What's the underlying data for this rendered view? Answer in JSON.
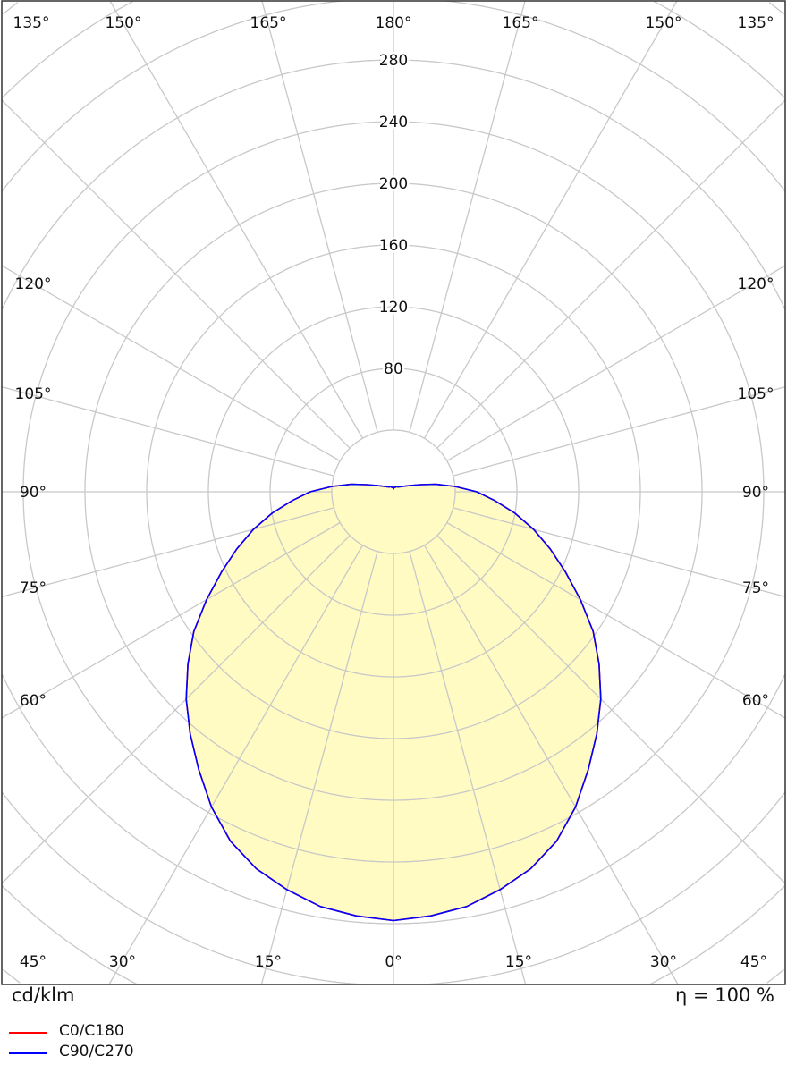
{
  "chart_data": {
    "type": "polar",
    "unit_label": "cd/klm",
    "efficiency_label": "η = 100 %",
    "radial_ticks": [
      80,
      120,
      160,
      200,
      240,
      280
    ],
    "ring_step": 40,
    "angle_labels": {
      "top": [
        "135°",
        "150°",
        "165°",
        "180°",
        "165°",
        "150°",
        "135°"
      ],
      "left": [
        "120°",
        "105°",
        "90°",
        "75°",
        "60°"
      ],
      "right": [
        "120°",
        "105°",
        "90°",
        "75°",
        "60°"
      ],
      "bottom": [
        "45°",
        "30°",
        "15°",
        "0°",
        "15°",
        "30°",
        "45°"
      ]
    },
    "grid": true,
    "fill_color": "#fffbc2",
    "series": [
      {
        "name": "C0/C180",
        "color": "#ff0000",
        "angles": [
          0,
          5,
          10,
          15,
          20,
          25,
          30,
          35,
          40,
          45,
          50,
          55,
          60,
          65,
          70,
          75,
          80,
          85,
          90,
          95,
          100,
          105,
          110,
          115,
          120,
          130,
          140,
          150,
          160,
          170,
          180
        ],
        "values": [
          278,
          276,
          273,
          267,
          260,
          250,
          236,
          220,
          205,
          190,
          174,
          158,
          140,
          123,
          108,
          94,
          80,
          66,
          54,
          40,
          28,
          18,
          12,
          9,
          7,
          5,
          4,
          4,
          3,
          3,
          2
        ]
      },
      {
        "name": "C90/C270",
        "color": "#0000ff",
        "angles": [
          0,
          5,
          10,
          15,
          20,
          25,
          30,
          35,
          40,
          45,
          50,
          55,
          60,
          65,
          70,
          75,
          80,
          85,
          90,
          95,
          100,
          105,
          110,
          115,
          120,
          130,
          140,
          150,
          160,
          170,
          180
        ],
        "values": [
          278,
          276,
          273,
          267,
          260,
          250,
          236,
          220,
          205,
          190,
          174,
          158,
          140,
          123,
          108,
          94,
          80,
          66,
          54,
          40,
          28,
          18,
          12,
          9,
          7,
          5,
          4,
          4,
          3,
          3,
          2
        ]
      }
    ]
  }
}
